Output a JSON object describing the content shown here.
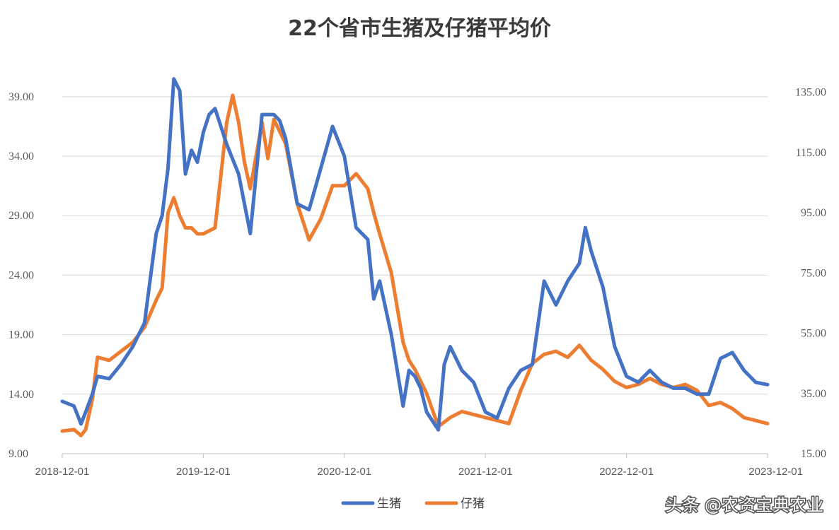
{
  "chart_data": {
    "type": "line",
    "title": "22个省市生猪及仔猪平均价",
    "x_tick_labels": [
      "2018-12-01",
      "2019-12-01",
      "2020-12-01",
      "2021-12-01",
      "2022-12-01",
      "2023-12-01"
    ],
    "y_left": {
      "ylim": [
        9,
        40
      ],
      "ticks": [
        9,
        14,
        19,
        24,
        29,
        34,
        39
      ],
      "tick_labels": [
        "9.00",
        "14.00",
        "19.00",
        "24.00",
        "29.00",
        "34.00",
        "39.00"
      ]
    },
    "y_right": {
      "ylim": [
        15,
        137.5
      ],
      "ticks": [
        15,
        35,
        55,
        75,
        95,
        115,
        135
      ],
      "tick_labels": [
        "15.00",
        "35.00",
        "55.00",
        "75.00",
        "95.00",
        "115.00",
        "135.00"
      ]
    },
    "grid": true,
    "legend_position": "bottom",
    "x_range": [
      2018.917,
      2023.917
    ],
    "series": [
      {
        "name": "生猪",
        "axis": "left",
        "color": "#4472C4",
        "x": [
          2018.917,
          2019.0,
          2019.05,
          2019.083,
          2019.13,
          2019.167,
          2019.25,
          2019.333,
          2019.417,
          2019.5,
          2019.583,
          2019.625,
          2019.667,
          2019.708,
          2019.75,
          2019.79,
          2019.833,
          2019.875,
          2019.917,
          2019.958,
          2020.0,
          2020.083,
          2020.167,
          2020.25,
          2020.333,
          2020.417,
          2020.458,
          2020.5,
          2020.583,
          2020.667,
          2020.75,
          2020.833,
          2020.917,
          2021.0,
          2021.083,
          2021.125,
          2021.167,
          2021.25,
          2021.333,
          2021.375,
          2021.417,
          2021.458,
          2021.5,
          2021.583,
          2021.625,
          2021.667,
          2021.75,
          2021.833,
          2021.917,
          2022.0,
          2022.083,
          2022.167,
          2022.25,
          2022.333,
          2022.417,
          2022.5,
          2022.583,
          2022.625,
          2022.667,
          2022.75,
          2022.833,
          2022.917,
          2023.0,
          2023.083,
          2023.167,
          2023.25,
          2023.333,
          2023.417,
          2023.5,
          2023.583,
          2023.667,
          2023.75,
          2023.833,
          2023.917
        ],
        "values": [
          13.4,
          13.0,
          11.5,
          12.5,
          14.0,
          15.5,
          15.3,
          16.5,
          18.0,
          20.0,
          27.5,
          29.0,
          33.0,
          40.5,
          39.5,
          32.5,
          34.5,
          33.5,
          36.0,
          37.5,
          38.0,
          35.0,
          32.5,
          27.5,
          37.5,
          37.5,
          37.0,
          35.5,
          30.0,
          29.5,
          33.0,
          36.5,
          34.0,
          28.0,
          27.0,
          22.0,
          23.5,
          19.0,
          13.0,
          16.0,
          15.5,
          14.5,
          12.5,
          11.0,
          16.5,
          18.0,
          16.0,
          15.0,
          12.5,
          12.0,
          14.5,
          16.0,
          16.5,
          23.5,
          21.5,
          23.5,
          25.0,
          28.0,
          26.0,
          23.0,
          18.0,
          15.5,
          15.0,
          16.0,
          15.0,
          14.5,
          14.5,
          14.0,
          14.0,
          17.0,
          17.5,
          16.0,
          15.0,
          14.8
        ]
      },
      {
        "name": "仔猪",
        "axis": "right",
        "color": "#ED7D31",
        "x": [
          2018.917,
          2019.0,
          2019.05,
          2019.083,
          2019.13,
          2019.167,
          2019.25,
          2019.333,
          2019.417,
          2019.5,
          2019.583,
          2019.625,
          2019.667,
          2019.708,
          2019.75,
          2019.79,
          2019.833,
          2019.875,
          2019.917,
          2020.0,
          2020.083,
          2020.125,
          2020.167,
          2020.208,
          2020.25,
          2020.333,
          2020.375,
          2020.417,
          2020.5,
          2020.583,
          2020.667,
          2020.75,
          2020.833,
          2020.917,
          2021.0,
          2021.083,
          2021.125,
          2021.167,
          2021.25,
          2021.333,
          2021.375,
          2021.417,
          2021.5,
          2021.583,
          2021.667,
          2021.75,
          2021.833,
          2021.917,
          2022.0,
          2022.083,
          2022.167,
          2022.25,
          2022.333,
          2022.417,
          2022.5,
          2022.583,
          2022.667,
          2022.75,
          2022.833,
          2022.917,
          2023.0,
          2023.083,
          2023.167,
          2023.25,
          2023.333,
          2023.417,
          2023.5,
          2023.583,
          2023.667,
          2023.75,
          2023.833,
          2023.917
        ],
        "values": [
          22.5,
          23.0,
          21.0,
          23.0,
          33.0,
          47.0,
          46.0,
          49.0,
          52.0,
          57.0,
          66.0,
          70.0,
          95.0,
          100.0,
          94.0,
          90.0,
          90.0,
          88.0,
          88.0,
          90.0,
          125.0,
          134.0,
          125.0,
          112.0,
          103.0,
          125.0,
          113.0,
          126.0,
          118.0,
          98.0,
          86.0,
          93.0,
          104.0,
          104.0,
          108.0,
          103.0,
          95.0,
          88.0,
          75.0,
          52.0,
          46.0,
          43.0,
          35.0,
          24.0,
          27.0,
          29.0,
          28.0,
          27.0,
          26.0,
          25.0,
          36.0,
          45.0,
          48.0,
          49.0,
          47.0,
          51.0,
          46.0,
          43.0,
          39.0,
          37.0,
          38.0,
          40.0,
          38.0,
          37.0,
          38.0,
          36.0,
          31.0,
          32.0,
          30.0,
          27.0,
          26.0,
          25.0
        ]
      }
    ]
  },
  "legend": {
    "items": [
      {
        "label": "生猪",
        "color": "#4472C4"
      },
      {
        "label": "仔猪",
        "color": "#ED7D31"
      }
    ]
  },
  "watermark": {
    "text": "头条 @农资宝典农业"
  }
}
